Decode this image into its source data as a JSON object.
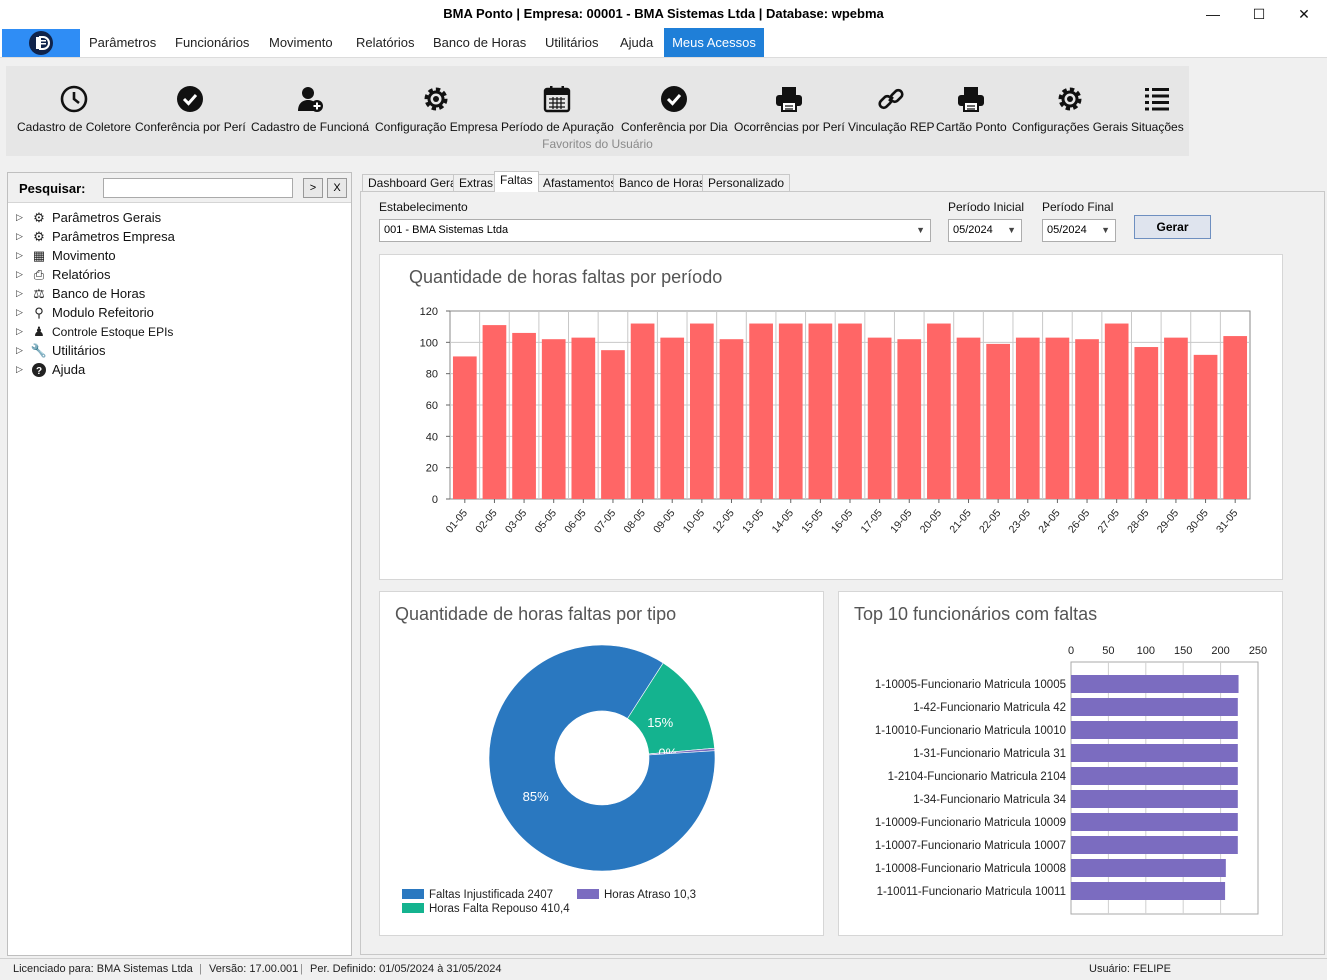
{
  "window": {
    "title": "BMA Ponto  |  Empresa: 00001 - BMA Sistemas Ltda  |  Database: wpebma"
  },
  "menu": [
    "Parâmetros",
    "Funcionários",
    "Movimento",
    "Relatórios",
    "Banco de Horas",
    "Utilitários",
    "Ajuda",
    "Meus Acessos"
  ],
  "ribbon": {
    "buttons": [
      {
        "label": "Cadastro de Coletore",
        "icon": "clock-icon"
      },
      {
        "label": "Conferência por Perí",
        "icon": "check-circle-icon"
      },
      {
        "label": "Cadastro de Funcioná",
        "icon": "user-add-icon"
      },
      {
        "label": "Configuração Empresa",
        "icon": "gear-icon"
      },
      {
        "label": "Período de Apuração",
        "icon": "calendar-icon"
      },
      {
        "label": "Conferência por Dia",
        "icon": "check-circle-icon"
      },
      {
        "label": "Ocorrências por Perí",
        "icon": "printer-icon"
      },
      {
        "label": "Vinculação REP",
        "icon": "link-icon"
      },
      {
        "label": "Cartão Ponto",
        "icon": "printer-icon"
      },
      {
        "label": "Configurações Gerais",
        "icon": "gear-icon"
      },
      {
        "label": "Situações",
        "icon": "list-icon"
      }
    ],
    "group_label": "Favoritos do Usuário"
  },
  "search": {
    "label": "Pesquisar:",
    "value": "",
    "go_label": ">",
    "clear_label": "X"
  },
  "tree": [
    {
      "label": "Parâmetros Gerais",
      "icon": "gears-icon"
    },
    {
      "label": "Parâmetros Empresa",
      "icon": "gears-icon"
    },
    {
      "label": "Movimento",
      "icon": "calculator-icon"
    },
    {
      "label": "Relatórios",
      "icon": "printer-icon"
    },
    {
      "label": "Banco de Horas",
      "icon": "scale-icon"
    },
    {
      "label": "Modulo Refeitorio",
      "icon": "fork-icon"
    },
    {
      "label": "Controle Estoque EPIs",
      "icon": "users-icon"
    },
    {
      "label": "Utilitários",
      "icon": "wrench-icon"
    },
    {
      "label": "Ajuda",
      "icon": "help-icon"
    }
  ],
  "tabs": [
    "Dashboard Geral",
    "Extras",
    "Faltas",
    "Afastamentos",
    "Banco de Horas",
    "Personalizado"
  ],
  "active_tab": "Faltas",
  "filters": {
    "estabelecimento_label": "Estabelecimento",
    "estabelecimento_value": "001 - BMA Sistemas Ltda",
    "periodo_inicial_label": "Período Inicial",
    "periodo_inicial_value": "05/2024",
    "periodo_final_label": "Período Final",
    "periodo_final_value": "05/2024",
    "gerar_label": "Gerar"
  },
  "chart_data": [
    {
      "type": "bar",
      "title": "Quantidade de horas faltas por período",
      "categories": [
        "01-05",
        "02-05",
        "03-05",
        "05-05",
        "06-05",
        "07-05",
        "08-05",
        "09-05",
        "10-05",
        "12-05",
        "13-05",
        "14-05",
        "15-05",
        "16-05",
        "17-05",
        "19-05",
        "20-05",
        "21-05",
        "22-05",
        "23-05",
        "24-05",
        "26-05",
        "27-05",
        "28-05",
        "29-05",
        "30-05",
        "31-05"
      ],
      "values": [
        91,
        111,
        106,
        102,
        103,
        95,
        112,
        103,
        112,
        102,
        112,
        112,
        112,
        112,
        103,
        102,
        112,
        103,
        99,
        103,
        103,
        102,
        112,
        97,
        103,
        92,
        104
      ],
      "ylim": [
        0,
        120
      ],
      "yticks": [
        0,
        20,
        40,
        60,
        80,
        100,
        120
      ],
      "color": "#ff6666",
      "grid": true
    },
    {
      "type": "pie",
      "title": "Quantidade de horas faltas por tipo",
      "donut": true,
      "slices": [
        {
          "name": "Faltas Injustificada 2407",
          "value": 2407,
          "label": "85%",
          "color": "#2a78c0"
        },
        {
          "name": "Horas Falta Repouso 410,4",
          "value": 410.4,
          "label": "15%",
          "color": "#14b38f"
        },
        {
          "name": "Horas Atraso 10,3",
          "value": 10.3,
          "label": "0%",
          "color": "#7b6cc0"
        }
      ],
      "legend": "bottom"
    },
    {
      "type": "bar",
      "orientation": "horizontal",
      "title": "Top 10 funcionários com faltas",
      "categories": [
        "1-10005-Funcionario Matricula 10005",
        "1-42-Funcionario Matricula 42",
        "1-10010-Funcionario Matricula 10010",
        "1-31-Funcionario Matricula 31",
        "1-2104-Funcionario Matricula 2104",
        "1-34-Funcionario Matricula 34",
        "1-10009-Funcionario Matricula 10009",
        "1-10007-Funcionario Matricula 10007",
        "1-10008-Funcionario Matricula 10008",
        "1-10011-Funcionario Matricula 10011"
      ],
      "values": [
        224,
        223,
        223,
        223,
        223,
        223,
        223,
        223,
        207,
        206
      ],
      "xlim": [
        0,
        250
      ],
      "xticks": [
        0,
        50,
        100,
        150,
        200,
        250
      ],
      "color": "#7b6cc0"
    }
  ],
  "status": {
    "licensed": "Licenciado para: BMA Sistemas Ltda",
    "version": "Versão: 17.00.001",
    "period": "Per. Definido: 01/05/2024 à 31/05/2024",
    "user": "Usuário: FELIPE"
  }
}
